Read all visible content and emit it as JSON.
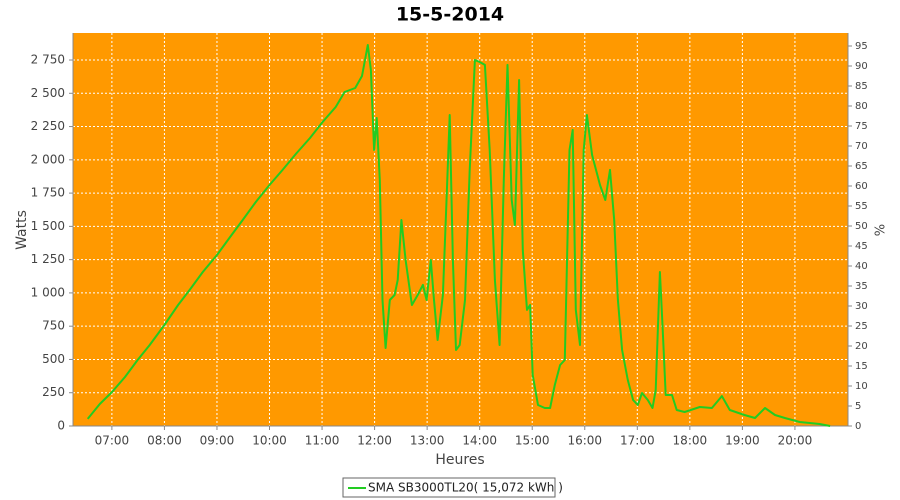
{
  "chart_data": {
    "type": "line",
    "title": "15-5-2014",
    "x_label": "Heures",
    "y_label": "Watts",
    "y2_label": "%",
    "background": "#ff9900",
    "grid": true,
    "legend": "bottom",
    "xlim": [
      6.26,
      21.01
    ],
    "xticks": [
      {
        "value": 7,
        "label": "07:00"
      },
      {
        "value": 8,
        "label": "08:00"
      },
      {
        "value": 9,
        "label": "09:00"
      },
      {
        "value": 10,
        "label": "10:00"
      },
      {
        "value": 11,
        "label": "11:00"
      },
      {
        "value": 12,
        "label": "12:00"
      },
      {
        "value": 13,
        "label": "13:00"
      },
      {
        "value": 14,
        "label": "14:00"
      },
      {
        "value": 15,
        "label": "15:00"
      },
      {
        "value": 16,
        "label": "16:00"
      },
      {
        "value": 17,
        "label": "17:00"
      },
      {
        "value": 18,
        "label": "18:00"
      },
      {
        "value": 19,
        "label": "19:00"
      },
      {
        "value": 20,
        "label": "20:00"
      }
    ],
    "ylim": [
      0,
      2953
    ],
    "yticks": [
      0,
      250,
      500,
      750,
      {
        "value": 1000,
        "label": "1 000"
      },
      {
        "value": 1250,
        "label": "1 250"
      },
      {
        "value": 1500,
        "label": "1 500"
      },
      {
        "value": 1750,
        "label": "1 750"
      },
      {
        "value": 2000,
        "label": "2 000"
      },
      {
        "value": 2250,
        "label": "2 250"
      },
      {
        "value": 2500,
        "label": "2 500"
      },
      {
        "value": 2750,
        "label": "2 750"
      }
    ],
    "y2lim": [
      0,
      98.25
    ],
    "y2ticks": [
      0,
      5,
      10,
      15,
      20,
      25,
      30,
      35,
      40,
      45,
      50,
      55,
      60,
      65,
      70,
      75,
      80,
      85,
      90,
      95
    ],
    "x": [
      6.54,
      6.77,
      7.0,
      7.25,
      7.49,
      7.72,
      8.0,
      8.26,
      8.48,
      8.73,
      9.0,
      9.25,
      9.49,
      9.74,
      10.0,
      10.25,
      10.5,
      10.77,
      11.01,
      11.26,
      11.43,
      11.63,
      11.76,
      11.87,
      11.93,
      11.99,
      12.04,
      12.1,
      12.15,
      12.21,
      12.29,
      12.38,
      12.44,
      12.51,
      12.59,
      12.71,
      12.82,
      12.92,
      12.99,
      13.07,
      13.13,
      13.2,
      13.3,
      13.38,
      13.43,
      13.49,
      13.55,
      13.62,
      13.72,
      13.81,
      13.91,
      14.0,
      14.1,
      14.19,
      14.29,
      14.38,
      14.46,
      14.53,
      14.61,
      14.67,
      14.75,
      14.82,
      14.9,
      14.96,
      15.01,
      15.11,
      15.24,
      15.34,
      15.43,
      15.53,
      15.62,
      15.71,
      15.77,
      15.83,
      15.91,
      15.98,
      16.04,
      16.14,
      16.29,
      16.39,
      16.48,
      16.56,
      16.63,
      16.71,
      16.82,
      16.92,
      17.01,
      17.09,
      17.2,
      17.29,
      17.35,
      17.43,
      17.48,
      17.54,
      17.66,
      17.75,
      17.9,
      18.19,
      18.42,
      18.61,
      18.76,
      19.04,
      19.24,
      19.43,
      19.62,
      19.81,
      20.09,
      20.47,
      20.67
    ],
    "series": [
      {
        "name": "SMA SB3000TL20( 15,072 kWh )",
        "color": "#22cc22",
        "values": [
          53,
          165,
          255,
          368,
          496,
          609,
          759,
          909,
          1022,
          1157,
          1285,
          1420,
          1548,
          1683,
          1811,
          1924,
          2044,
          2164,
          2284,
          2397,
          2510,
          2540,
          2630,
          2863,
          2675,
          2074,
          2314,
          1848,
          947,
          586,
          947,
          984,
          1097,
          1548,
          1247,
          909,
          984,
          1060,
          947,
          1247,
          947,
          646,
          984,
          1811,
          2337,
          1247,
          571,
          609,
          947,
          1924,
          2750,
          2735,
          2713,
          2074,
          1097,
          609,
          1848,
          2713,
          1698,
          1510,
          2600,
          1322,
          872,
          909,
          383,
          158,
          135,
          135,
          308,
          458,
          496,
          2074,
          2224,
          872,
          609,
          2074,
          2337,
          2036,
          1811,
          1698,
          1924,
          1548,
          947,
          571,
          346,
          195,
          158,
          248,
          195,
          135,
          270,
          1157,
          759,
          233,
          233,
          120,
          105,
          143,
          135,
          225,
          120,
          83,
          60,
          135,
          83,
          60,
          30,
          15,
          0
        ]
      }
    ]
  }
}
